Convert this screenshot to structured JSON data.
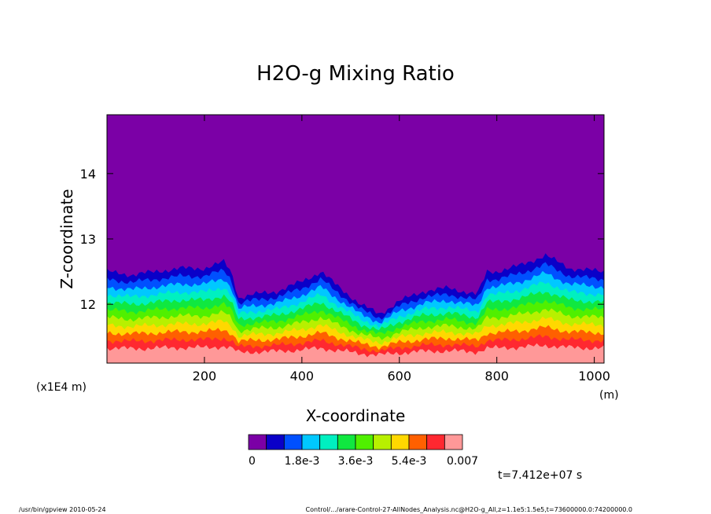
{
  "chart_data": {
    "type": "heatmap",
    "title": "H2O-g Mixing Ratio",
    "xlabel": "X-coordinate",
    "ylabel": "Z-coordinate",
    "x_unit": "(m)",
    "y_unit": "(x1E4 m)",
    "xlim": [
      0,
      1020
    ],
    "ylim": [
      11.1,
      14.9
    ],
    "x_ticks": [
      200,
      400,
      600,
      800,
      1000
    ],
    "x_tick_labels": [
      "200",
      "400",
      "600",
      "800",
      "1000"
    ],
    "y_ticks": [
      12,
      13,
      14
    ],
    "y_tick_labels": [
      "12",
      "13",
      "14"
    ],
    "background_level_color": "#7b00a6",
    "colorbar": {
      "colors": [
        "#7b00a6",
        "#0a00c8",
        "#0050ff",
        "#00c8ff",
        "#00f0c0",
        "#10e840",
        "#50f000",
        "#b8f000",
        "#ffd800",
        "#ff6000",
        "#ff2830",
        "#ff9898"
      ],
      "tick_labels": [
        "0",
        "1.8e-3",
        "3.6e-3",
        "5.4e-3",
        "0.007"
      ]
    },
    "moisture_top_profile": {
      "x": [
        0,
        50,
        100,
        150,
        200,
        240,
        255,
        270,
        300,
        350,
        400,
        440,
        470,
        520,
        560,
        600,
        650,
        700,
        760,
        780,
        800,
        850,
        900,
        950,
        1020
      ],
      "z": [
        12.5,
        12.45,
        12.5,
        12.55,
        12.55,
        12.65,
        12.5,
        12.1,
        12.15,
        12.2,
        12.35,
        12.5,
        12.3,
        12.0,
        11.85,
        12.05,
        12.2,
        12.25,
        12.15,
        12.5,
        12.5,
        12.6,
        12.75,
        12.55,
        12.5
      ]
    },
    "time_label": "t=7.412e+07 s"
  },
  "footer": {
    "left": "/usr/bin/gpview  2010-05-24",
    "right": "Control/.../arare-Control-27-AllNodes_Analysis.nc@H2O-g_All,z=1.1e5:1.5e5,t=73600000.0:74200000.0"
  }
}
